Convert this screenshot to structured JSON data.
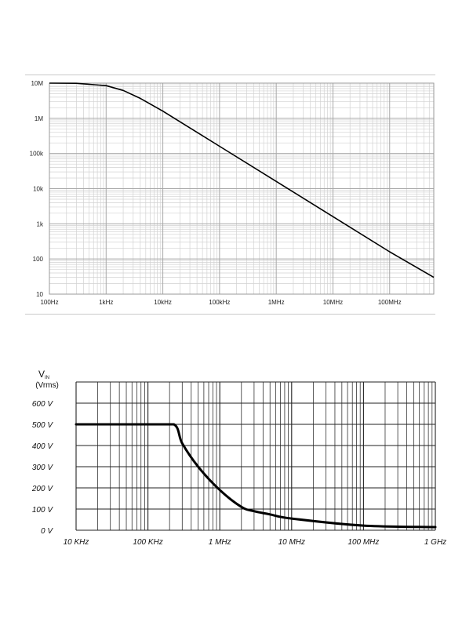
{
  "chart_data": [
    {
      "type": "line",
      "title": "",
      "xlabel": "",
      "ylabel": "",
      "xscale": "log",
      "yscale": "log",
      "xlim": [
        100,
        600000000
      ],
      "ylim": [
        10,
        10000000
      ],
      "x_ticks": [
        "100Hz",
        "1kHz",
        "10kHz",
        "100kHz",
        "1MHz",
        "10MHz",
        "100MHz"
      ],
      "y_ticks": [
        "10M",
        "1M",
        "100k",
        "10k",
        "1k",
        "100",
        "10"
      ],
      "grid": true,
      "series": [
        {
          "x": [
            100,
            300,
            1000,
            2000,
            4000,
            10000,
            100000,
            1000000,
            10000000,
            100000000,
            600000000
          ],
          "values": [
            10000000,
            9900000,
            8500000,
            6200000,
            3700000,
            1600000,
            160000,
            16000,
            1600,
            160,
            30
          ]
        }
      ]
    },
    {
      "type": "line",
      "title": "",
      "xlabel": "",
      "ylabel": "(Vrms)",
      "ylabel_symbol": "V",
      "ylabel_subscript": "IN",
      "xscale": "log",
      "xlim": [
        10000,
        1000000000
      ],
      "ylim": [
        0,
        700
      ],
      "x_ticks": [
        "10 KHz",
        "100 KHz",
        "1 MHz",
        "10 MHz",
        "100 MHz",
        "1 GHz"
      ],
      "y_ticks": [
        "600 V",
        "500 V",
        "400 V",
        "300 V",
        "200 V",
        "100 V",
        "0 V"
      ],
      "grid": true,
      "series": [
        {
          "x": [
            10000,
            100000,
            230000,
            300000,
            500000,
            1000000,
            2000000,
            3000000,
            5000000,
            10000000,
            100000000,
            1000000000
          ],
          "values": [
            500,
            500,
            500,
            410,
            300,
            190,
            110,
            90,
            75,
            55,
            22,
            15
          ]
        }
      ]
    }
  ]
}
